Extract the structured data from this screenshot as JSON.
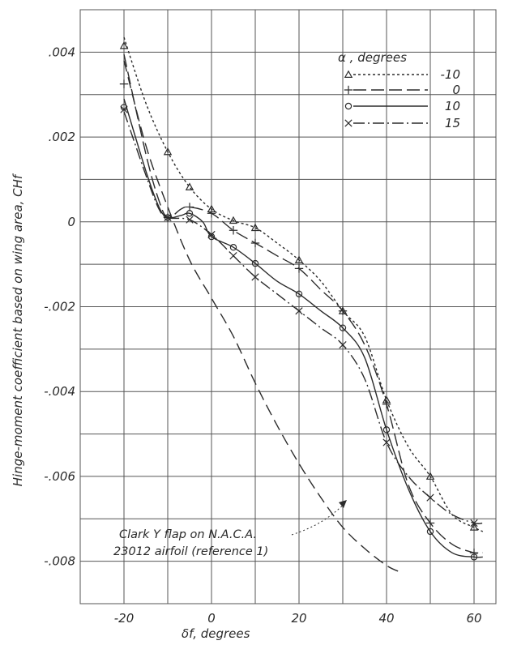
{
  "chart_data": {
    "type": "line",
    "xlabel": "δf, degrees",
    "ylabel": "Hinge-moment coefficient based on wing area, CHf",
    "xlim": [
      -30,
      65
    ],
    "ylim": [
      -0.009,
      0.005
    ],
    "x_ticks": [
      -20,
      0,
      20,
      40,
      60
    ],
    "x_tick_labels": [
      "-20",
      "0",
      "20",
      "40",
      "60"
    ],
    "y_ticks": [
      0.004,
      0.002,
      0,
      -0.002,
      -0.004,
      -0.006,
      -0.008
    ],
    "y_tick_labels": [
      ".004",
      ".002",
      "0",
      "-.002",
      "-.004",
      "-.006",
      "-.008"
    ],
    "grid": true,
    "legend_title": "α , degrees",
    "legend_position": "top-right",
    "series": [
      {
        "name": "-10",
        "marker": "triangle",
        "dash": "3,3",
        "points": [
          [
            -20,
            0.00415
          ],
          [
            -10,
            0.00165
          ],
          [
            -5,
            0.00082
          ],
          [
            0,
            0.0003
          ],
          [
            5,
            3e-05
          ],
          [
            10,
            -0.00014
          ],
          [
            20,
            -0.0009
          ],
          [
            30,
            -0.0021
          ],
          [
            40,
            -0.0042
          ],
          [
            50,
            -0.006
          ],
          [
            60,
            -0.0072
          ]
        ],
        "line": [
          [
            -20,
            0.00435
          ],
          [
            -15,
            0.0028
          ],
          [
            -10,
            0.00165
          ],
          [
            -5,
            0.00082
          ],
          [
            0,
            0.0003
          ],
          [
            5,
            3e-05
          ],
          [
            10,
            -0.00014
          ],
          [
            15,
            -0.0005
          ],
          [
            20,
            -0.0009
          ],
          [
            25,
            -0.0014
          ],
          [
            30,
            -0.0021
          ],
          [
            35,
            -0.0027
          ],
          [
            40,
            -0.0042
          ],
          [
            45,
            -0.0053
          ],
          [
            50,
            -0.006
          ],
          [
            55,
            -0.0069
          ],
          [
            60,
            -0.0072
          ],
          [
            62,
            -0.0073
          ]
        ]
      },
      {
        "name": "0",
        "marker": "plus",
        "dash": "16,6",
        "points": [
          [
            -20,
            0.00325
          ],
          [
            -10,
            0.0001
          ],
          [
            -5,
            0.00035
          ],
          [
            0,
            0.0002
          ],
          [
            5,
            -0.0002
          ],
          [
            10,
            -0.0005
          ],
          [
            20,
            -0.0011
          ],
          [
            30,
            -0.0021
          ],
          [
            40,
            -0.0043
          ],
          [
            50,
            -0.0071
          ],
          [
            60,
            -0.0078
          ]
        ],
        "line": [
          [
            -20,
            0.00395
          ],
          [
            -15,
            0.0016
          ],
          [
            -12,
            0.0005
          ],
          [
            -10,
            0.0001
          ],
          [
            -7,
            0.0003
          ],
          [
            -5,
            0.00035
          ],
          [
            0,
            0.0002
          ],
          [
            5,
            -0.0002
          ],
          [
            10,
            -0.0005
          ],
          [
            15,
            -0.0008
          ],
          [
            20,
            -0.0011
          ],
          [
            25,
            -0.0016
          ],
          [
            30,
            -0.0021
          ],
          [
            35,
            -0.0029
          ],
          [
            40,
            -0.0043
          ],
          [
            45,
            -0.0062
          ],
          [
            50,
            -0.0071
          ],
          [
            55,
            -0.0076
          ],
          [
            60,
            -0.0078
          ],
          [
            62,
            -0.0078
          ]
        ]
      },
      {
        "name": "10",
        "marker": "circle",
        "dash": "",
        "points": [
          [
            -20,
            0.0027
          ],
          [
            -10,
            0.0001
          ],
          [
            -5,
            0.0002
          ],
          [
            0,
            -0.00035
          ],
          [
            5,
            -0.0006
          ],
          [
            10,
            -0.00098
          ],
          [
            20,
            -0.0017
          ],
          [
            30,
            -0.0025
          ],
          [
            40,
            -0.0049
          ],
          [
            50,
            -0.0073
          ],
          [
            60,
            -0.0079
          ]
        ],
        "line": [
          [
            -20,
            0.0029
          ],
          [
            -15,
            0.0012
          ],
          [
            -12,
            0.00035
          ],
          [
            -10,
            0.0001
          ],
          [
            -7,
            0.00015
          ],
          [
            -5,
            0.0002
          ],
          [
            -2,
            0.0
          ],
          [
            0,
            -0.00035
          ],
          [
            5,
            -0.0006
          ],
          [
            10,
            -0.00098
          ],
          [
            15,
            -0.0014
          ],
          [
            20,
            -0.0017
          ],
          [
            25,
            -0.0021
          ],
          [
            30,
            -0.0025
          ],
          [
            35,
            -0.0032
          ],
          [
            40,
            -0.0049
          ],
          [
            45,
            -0.0063
          ],
          [
            50,
            -0.0073
          ],
          [
            55,
            -0.0078
          ],
          [
            60,
            -0.0079
          ],
          [
            62,
            -0.0079
          ]
        ]
      },
      {
        "name": "15",
        "marker": "x",
        "dash": "14,4,2,4",
        "points": [
          [
            -20,
            0.00265
          ],
          [
            -10,
            0.0001
          ],
          [
            -5,
            5e-05
          ],
          [
            0,
            -0.0003
          ],
          [
            5,
            -0.0008
          ],
          [
            10,
            -0.0013
          ],
          [
            20,
            -0.0021
          ],
          [
            30,
            -0.0029
          ],
          [
            40,
            -0.0052
          ],
          [
            50,
            -0.0065
          ],
          [
            60,
            -0.0071
          ]
        ],
        "line": [
          [
            -20,
            0.0026
          ],
          [
            -15,
            0.0011
          ],
          [
            -12,
            0.0003
          ],
          [
            -10,
            0.0001
          ],
          [
            -5,
            5e-05
          ],
          [
            0,
            -0.0003
          ],
          [
            5,
            -0.0008
          ],
          [
            10,
            -0.0013
          ],
          [
            15,
            -0.0017
          ],
          [
            20,
            -0.0021
          ],
          [
            25,
            -0.0025
          ],
          [
            30,
            -0.0029
          ],
          [
            35,
            -0.0037
          ],
          [
            40,
            -0.0052
          ],
          [
            45,
            -0.006
          ],
          [
            50,
            -0.0065
          ],
          [
            55,
            -0.0069
          ],
          [
            60,
            -0.0071
          ],
          [
            62,
            -0.0071
          ]
        ]
      }
    ],
    "reference_curve": {
      "label_lines": [
        "Clark Y flap on N.A.C.A.",
        "23012 airfoil (reference 1)"
      ],
      "dash": "14,7",
      "line": [
        [
          -20,
          0.0038
        ],
        [
          -15,
          0.0018
        ],
        [
          -10,
          0.00035
        ],
        [
          -5,
          -0.0009
        ],
        [
          0,
          -0.0018
        ],
        [
          5,
          -0.0027
        ],
        [
          10,
          -0.0038
        ],
        [
          15,
          -0.0048
        ],
        [
          20,
          -0.0057
        ],
        [
          25,
          -0.0065
        ],
        [
          30,
          -0.0072
        ],
        [
          35,
          -0.0077
        ],
        [
          40,
          -0.0081
        ],
        [
          43,
          -0.00825
        ]
      ]
    }
  }
}
